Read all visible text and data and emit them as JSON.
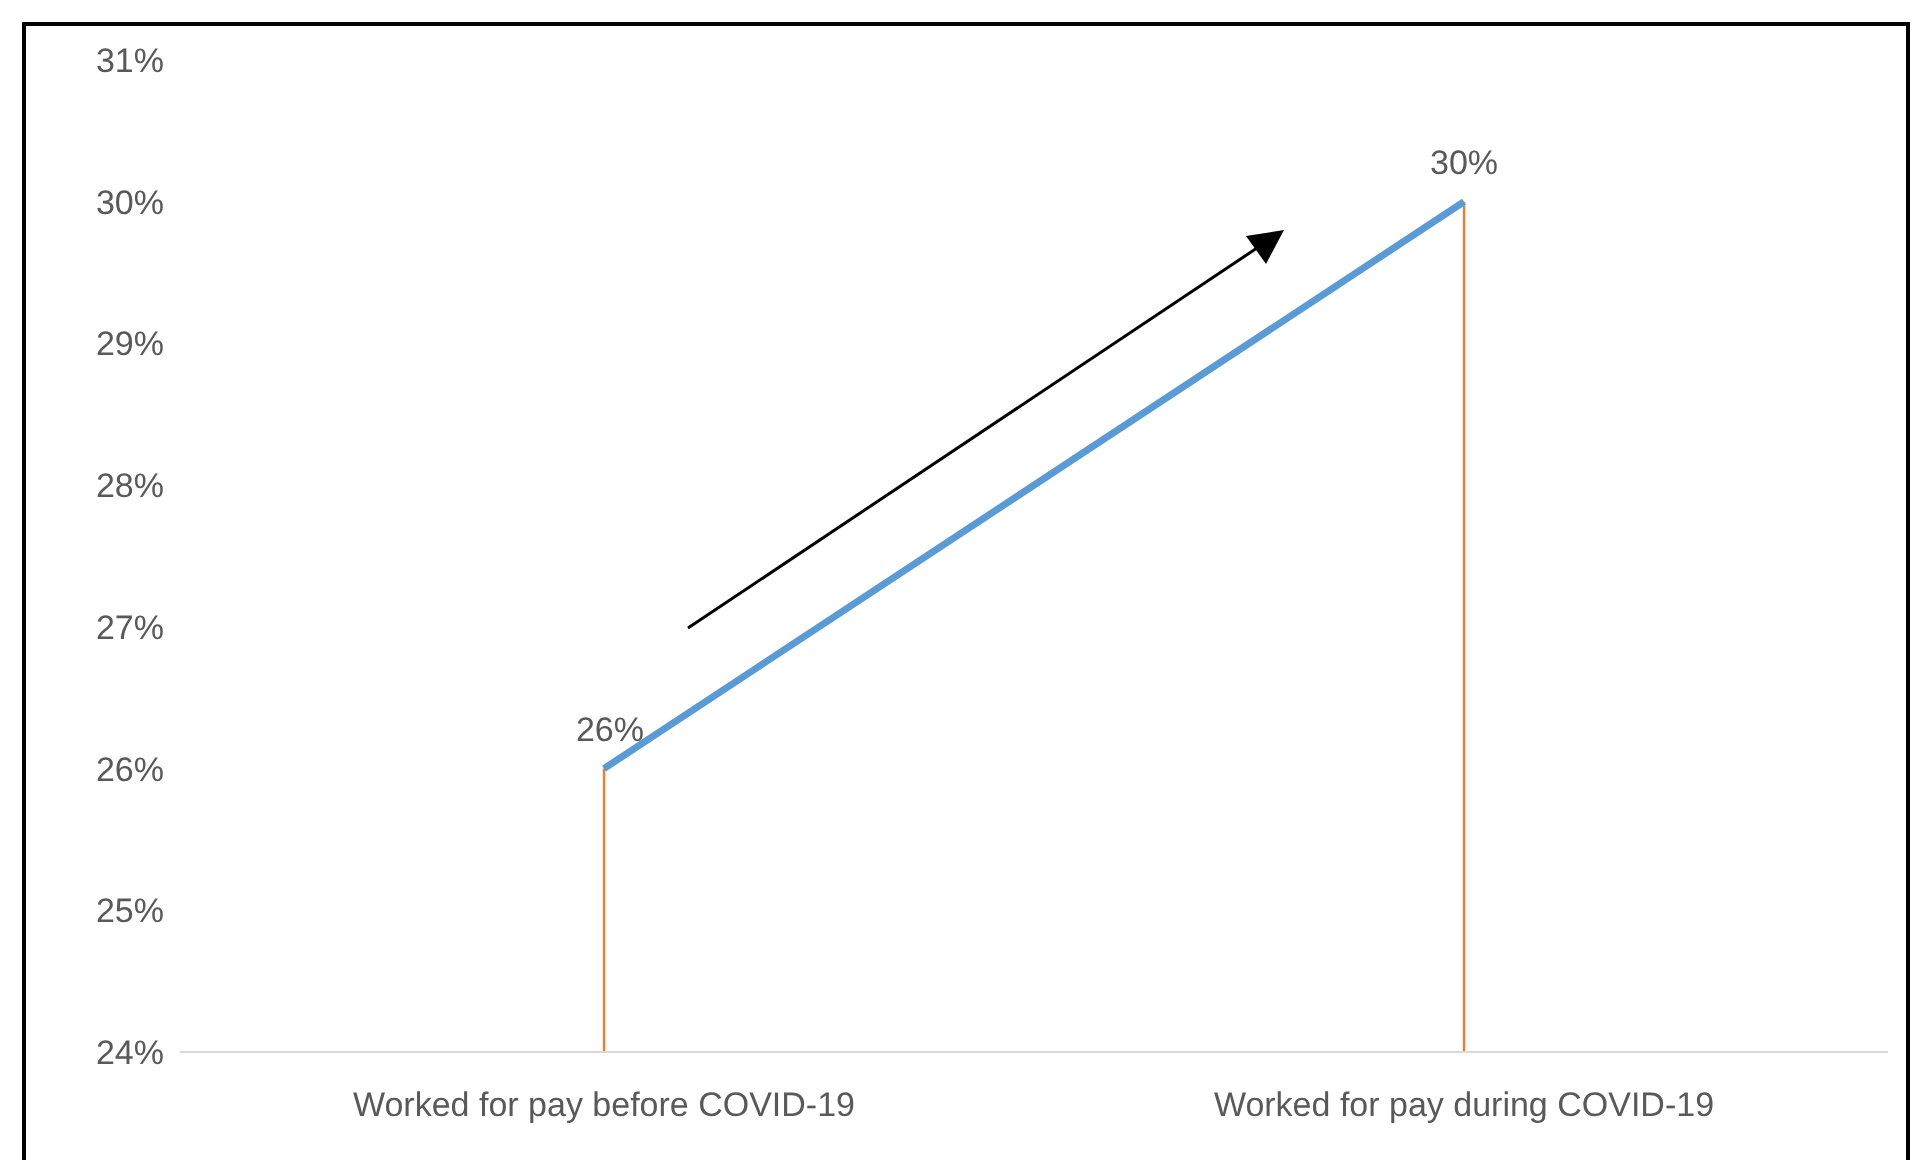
{
  "chart_data": {
    "type": "line",
    "categories": [
      "Worked for pay before COVID-19",
      "Worked for pay during COVID-19"
    ],
    "series": [
      {
        "color": "#5b9bd5",
        "values": [
          26,
          30
        ],
        "value_labels": [
          "26%",
          "30%"
        ]
      }
    ],
    "ylim": [
      24,
      31
    ],
    "yticks": [
      {
        "value": 24,
        "label": "24%"
      },
      {
        "value": 25,
        "label": "25%"
      },
      {
        "value": 26,
        "label": "26%"
      },
      {
        "value": 27,
        "label": "27%"
      },
      {
        "value": 28,
        "label": "28%"
      },
      {
        "value": 29,
        "label": "29%"
      },
      {
        "value": 30,
        "label": "30%"
      },
      {
        "value": 31,
        "label": "31%"
      }
    ],
    "ref_lines": [
      {
        "axis": "x",
        "value": "Worked for pay before COVID-19",
        "color": "#ed7d31"
      },
      {
        "axis": "x",
        "value": "Worked for pay during COVID-19",
        "color": "#ed7d31"
      }
    ],
    "grid": false,
    "legend": false,
    "marker": "none",
    "line_style": "solid"
  }
}
